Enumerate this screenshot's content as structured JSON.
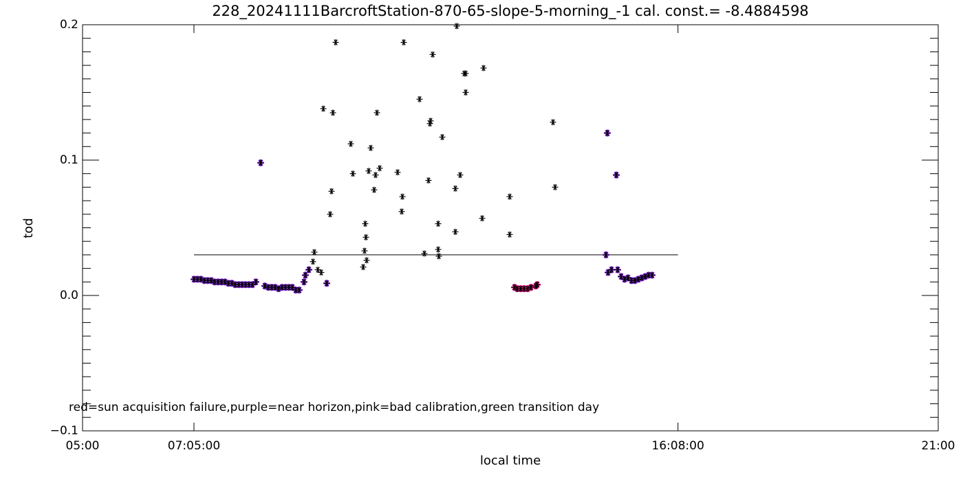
{
  "chart_data": {
    "type": "scatter",
    "title": "228_20241111BarcroftStation-870-65-slope-5-morning_-1 cal. const.= -8.4884598",
    "x_label": "local time",
    "y_label": "tod",
    "annotation": "red=sun acquisition failure,purple=near horizon,pink=bad calibration,green transition day",
    "xlim": [
      5,
      21
    ],
    "xticks": [
      {
        "value": 5,
        "label": "05:00"
      },
      {
        "value": 7.0833,
        "label": "07:05:00"
      },
      {
        "value": 16.1333,
        "label": "16:08:00"
      },
      {
        "value": 21,
        "label": "21:00"
      }
    ],
    "ylim": [
      -0.1,
      0.2
    ],
    "yticks": [
      {
        "value": -0.1,
        "label": "−0.1"
      },
      {
        "value": 0,
        "label": "0.0"
      },
      {
        "value": 0.1,
        "label": "0.1"
      },
      {
        "value": 0.2,
        "label": "0.2"
      }
    ],
    "yminor": 10,
    "hline": {
      "value": 0.03,
      "xrange": [
        7.0833,
        16.1333
      ],
      "color": "#000000"
    },
    "series": [
      {
        "color": "#9b30ff",
        "x": [
          7.084,
          7.148,
          7.212,
          7.277,
          7.341,
          7.405,
          7.469,
          7.534,
          7.598,
          7.662,
          7.727,
          7.791,
          7.855,
          7.92,
          7.984,
          8.048,
          8.113,
          8.177,
          8.241,
          8.331,
          8.408,
          8.473,
          8.537,
          8.601,
          8.666,
          8.73,
          8.794,
          8.859,
          8.923,
          8.987,
          9.051,
          9.141,
          9.167,
          9.232,
          9.566,
          14.788,
          14.813,
          14.826,
          14.891,
          14.981,
          15.006,
          15.071,
          15.135,
          15.199,
          15.264,
          15.328,
          15.392,
          15.457,
          15.521,
          15.585,
          15.65
        ],
        "values": [
          0.012,
          0.012,
          0.012,
          0.011,
          0.011,
          0.011,
          0.01,
          0.01,
          0.01,
          0.01,
          0.009,
          0.009,
          0.008,
          0.008,
          0.008,
          0.008,
          0.008,
          0.008,
          0.01,
          0.098,
          0.007,
          0.006,
          0.006,
          0.006,
          0.005,
          0.006,
          0.006,
          0.006,
          0.006,
          0.004,
          0.004,
          0.01,
          0.015,
          0.019,
          0.009,
          0.03,
          0.12,
          0.017,
          0.019,
          0.089,
          0.019,
          0.014,
          0.012,
          0.013,
          0.011,
          0.011,
          0.012,
          0.013,
          0.014,
          0.015,
          0.015
        ]
      },
      {
        "color": "#ff1493",
        "x": [
          13.077,
          13.129,
          13.193,
          13.257,
          13.322,
          13.386,
          13.476,
          13.502
        ],
        "values": [
          0.006,
          0.005,
          0.005,
          0.005,
          0.005,
          0.006,
          0.007,
          0.008
        ]
      },
      {
        "color": "#000000",
        "x": [
          7.084,
          7.148,
          7.212,
          7.277,
          7.341,
          7.405,
          7.469,
          7.534,
          7.598,
          7.662,
          7.727,
          7.791,
          7.855,
          7.92,
          7.984,
          8.048,
          8.113,
          8.177,
          8.241,
          8.331,
          8.408,
          8.473,
          8.537,
          8.601,
          8.666,
          8.73,
          8.794,
          8.859,
          8.923,
          8.987,
          9.051,
          9.141,
          9.167,
          9.232,
          9.309,
          9.334,
          9.399,
          9.463,
          9.502,
          9.566,
          9.63,
          9.656,
          9.682,
          9.733,
          10.016,
          10.055,
          10.248,
          10.273,
          10.286,
          10.299,
          10.312,
          10.35,
          10.389,
          10.453,
          10.479,
          10.505,
          10.556,
          10.891,
          10.968,
          10.981,
          11.006,
          11.302,
          11.392,
          11.469,
          11.495,
          11.508,
          11.547,
          11.65,
          11.65,
          11.662,
          11.727,
          11.971,
          11.971,
          11.997,
          12.061,
          12.138,
          12.164,
          12.164,
          12.473,
          12.498,
          12.987,
          12.987,
          13.077,
          13.129,
          13.193,
          13.257,
          13.322,
          13.386,
          13.476,
          13.502,
          13.797,
          13.836,
          14.788,
          14.813,
          14.826,
          14.891,
          14.981,
          15.006,
          15.071,
          15.135,
          15.199,
          15.264,
          15.328,
          15.392,
          15.457,
          15.521,
          15.585,
          15.65
        ],
        "values": [
          0.012,
          0.012,
          0.012,
          0.011,
          0.011,
          0.011,
          0.01,
          0.01,
          0.01,
          0.01,
          0.009,
          0.009,
          0.008,
          0.008,
          0.008,
          0.008,
          0.008,
          0.008,
          0.01,
          0.098,
          0.007,
          0.006,
          0.006,
          0.006,
          0.005,
          0.006,
          0.006,
          0.006,
          0.006,
          0.004,
          0.004,
          0.01,
          0.015,
          0.019,
          0.025,
          0.032,
          0.019,
          0.017,
          0.138,
          0.009,
          0.06,
          0.077,
          0.135,
          0.187,
          0.112,
          0.09,
          0.021,
          0.033,
          0.053,
          0.043,
          0.026,
          0.092,
          0.109,
          0.078,
          0.089,
          0.135,
          0.094,
          0.091,
          0.062,
          0.073,
          0.187,
          0.145,
          0.031,
          0.085,
          0.127,
          0.129,
          0.178,
          0.053,
          0.034,
          0.029,
          0.117,
          0.079,
          0.047,
          0.199,
          0.089,
          0.164,
          0.164,
          0.15,
          0.057,
          0.168,
          0.045,
          0.073,
          0.006,
          0.005,
          0.005,
          0.005,
          0.005,
          0.006,
          0.007,
          0.008,
          0.128,
          0.08,
          0.03,
          0.12,
          0.017,
          0.019,
          0.089,
          0.019,
          0.014,
          0.012,
          0.013,
          0.011,
          0.011,
          0.012,
          0.013,
          0.014,
          0.015,
          0.015
        ]
      }
    ]
  }
}
